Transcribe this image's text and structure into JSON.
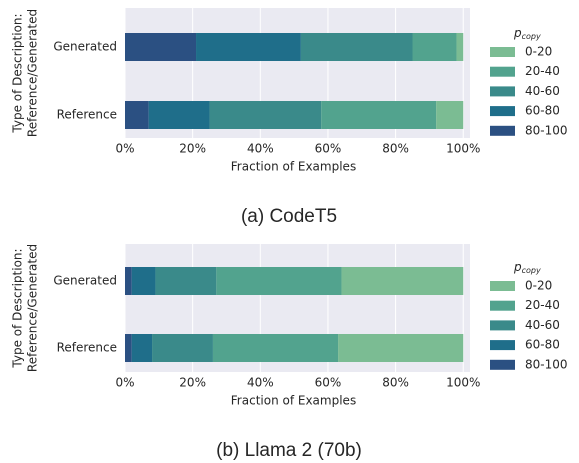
{
  "chart_data": [
    {
      "type": "stacked_barh",
      "caption": "(a) CodeT5",
      "ylabel": [
        "Type of Description:",
        "Reference/Generated"
      ],
      "xlabel": "Fraction of Examples",
      "categories": [
        "Generated",
        "Reference"
      ],
      "legend_title_main": "p",
      "legend_title_sub": "copy",
      "series": [
        {
          "name": "0-20",
          "color": "#7bbc93",
          "values": [
            2,
            8
          ]
        },
        {
          "name": "20-40",
          "color": "#52a38e",
          "values": [
            13,
            34
          ]
        },
        {
          "name": "40-60",
          "color": "#3a8a8a",
          "values": [
            33,
            33
          ]
        },
        {
          "name": "60-80",
          "color": "#1f6e8a",
          "values": [
            31,
            18
          ]
        },
        {
          "name": "80-100",
          "color": "#2b5082",
          "values": [
            21,
            7
          ]
        }
      ],
      "xlim": [
        0,
        102
      ],
      "xticks": [
        {
          "value": 0,
          "label": "0%"
        },
        {
          "value": 20,
          "label": "20%"
        },
        {
          "value": 40,
          "label": "40%"
        },
        {
          "value": 60,
          "label": "60%"
        },
        {
          "value": 80,
          "label": "80%"
        },
        {
          "value": 100,
          "label": "100%"
        }
      ],
      "grid": true
    },
    {
      "type": "stacked_barh",
      "caption": "(b) Llama 2 (70b)",
      "ylabel": [
        "Type of Description:",
        "Reference/Generated"
      ],
      "xlabel": "Fraction of Examples",
      "categories": [
        "Generated",
        "Reference"
      ],
      "legend_title_main": "p",
      "legend_title_sub": "copy",
      "series": [
        {
          "name": "0-20",
          "color": "#7bbc93",
          "values": [
            36,
            37
          ]
        },
        {
          "name": "20-40",
          "color": "#52a38e",
          "values": [
            37,
            37
          ]
        },
        {
          "name": "40-60",
          "color": "#3a8a8a",
          "values": [
            18,
            18
          ]
        },
        {
          "name": "60-80",
          "color": "#1f6e8a",
          "values": [
            7,
            6
          ]
        },
        {
          "name": "80-100",
          "color": "#2b5082",
          "values": [
            2,
            2
          ]
        }
      ],
      "xlim": [
        0,
        102
      ],
      "xticks": [
        {
          "value": 0,
          "label": "0%"
        },
        {
          "value": 20,
          "label": "20%"
        },
        {
          "value": 40,
          "label": "40%"
        },
        {
          "value": 60,
          "label": "60%"
        },
        {
          "value": 80,
          "label": "80%"
        },
        {
          "value": 100,
          "label": "100%"
        }
      ],
      "grid": true
    }
  ]
}
